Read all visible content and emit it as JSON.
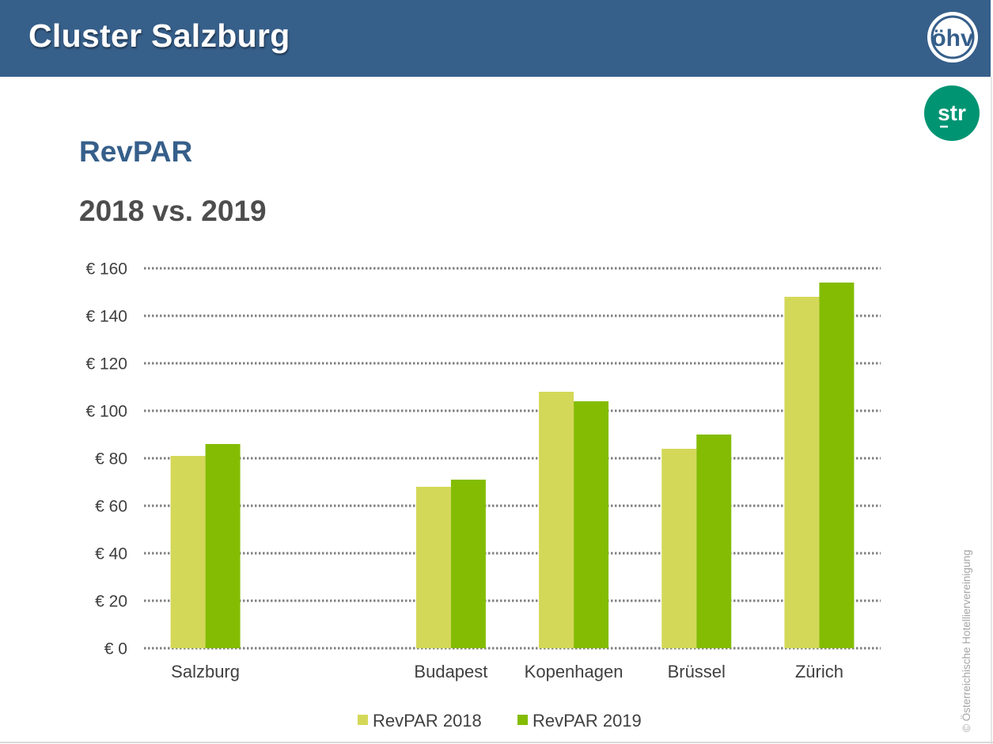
{
  "header": {
    "title": "Cluster Salzburg",
    "background_color": "#365f8a",
    "logo_text": "öhv",
    "logo_icon": "oehv-logo-icon"
  },
  "partner_logo": {
    "text": "str",
    "icon": "str-logo-icon",
    "color": "#009473"
  },
  "slide": {
    "title": "RevPAR",
    "subtitle": "2018 vs. 2019"
  },
  "copyright": "© Österreichische Hotelliervereinigung",
  "chart_data": {
    "type": "bar",
    "categories": [
      "Salzburg",
      "",
      "Budapest",
      "Kopenhagen",
      "Brüssel",
      "Zürich"
    ],
    "series": [
      {
        "name": "RevPAR 2018",
        "color": "#d4d858",
        "values": [
          81,
          null,
          68,
          108,
          84,
          148
        ]
      },
      {
        "name": "RevPAR 2019",
        "color": "#84bc03",
        "values": [
          86,
          null,
          71,
          104,
          90,
          154
        ]
      }
    ],
    "ylim": [
      0,
      160
    ],
    "yticks": [
      0,
      20,
      40,
      60,
      80,
      100,
      120,
      140,
      160
    ],
    "ytick_labels": [
      "€ 0",
      "€ 20",
      "€ 40",
      "€ 60",
      "€ 80",
      "€ 100",
      "€ 120",
      "€ 140",
      "€ 160"
    ],
    "grid": true,
    "legend": "bottom"
  }
}
